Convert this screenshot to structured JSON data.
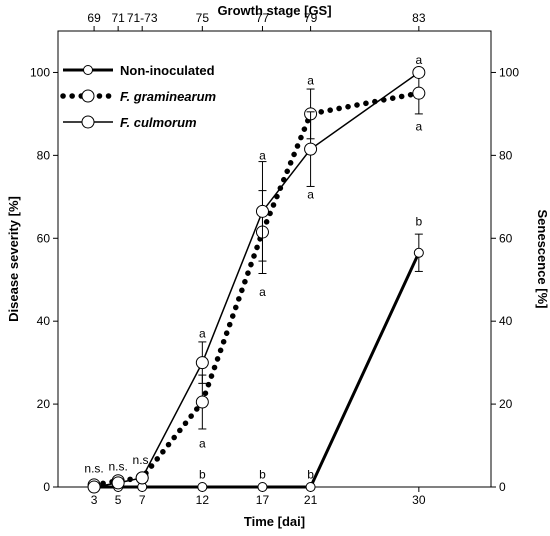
{
  "chart_data": {
    "type": "line",
    "xlabel": "Time [dai]",
    "ylabel": "Disease severity [%]",
    "y2label": "Senescence [%]",
    "top_axis_label": "Growth stage [GS]",
    "xlim": [
      0,
      36
    ],
    "ylim": [
      0,
      110
    ],
    "x_ticks": [
      3,
      5,
      7,
      12,
      17,
      21,
      30
    ],
    "x_tick_labels": [
      "3",
      "5",
      "7",
      "12",
      "17",
      "21",
      "30"
    ],
    "y_ticks": [
      0,
      20,
      40,
      60,
      80,
      100
    ],
    "y_tick_labels": [
      "0",
      "20",
      "40",
      "60",
      "80",
      "100"
    ],
    "top_ticks": [
      3,
      5,
      7,
      12,
      17,
      21,
      30
    ],
    "top_tick_labels": [
      "69",
      "71",
      "71-73",
      "75",
      "77",
      "79",
      "83"
    ],
    "legend_position": "top-left",
    "grid": false,
    "series": [
      {
        "name": "Non-inoculated",
        "style": "solid-thick",
        "x": [
          3,
          5,
          7,
          12,
          17,
          21,
          30
        ],
        "y": [
          0,
          0,
          0,
          0,
          0,
          0,
          56.5
        ],
        "err": [
          0,
          0,
          0,
          0,
          0,
          0,
          4.5
        ]
      },
      {
        "name": "F. graminearum",
        "style": "dotted",
        "x": [
          3,
          5,
          7,
          12,
          17,
          21,
          30
        ],
        "y": [
          0.5,
          1.5,
          2.2,
          20.5,
          61.5,
          90,
          95
        ],
        "err": [
          0,
          0,
          0,
          6.5,
          10,
          6,
          5
        ]
      },
      {
        "name": "F. culmorum",
        "style": "solid-thin",
        "x": [
          3,
          5,
          7,
          12,
          17,
          21,
          30
        ],
        "y": [
          0,
          1,
          2.2,
          30,
          66.5,
          81.5,
          100
        ],
        "err": [
          0,
          0,
          0,
          5,
          12,
          9,
          0
        ]
      }
    ],
    "annotations": [
      {
        "text": "n.s.",
        "x": 3,
        "y": 4.5
      },
      {
        "text": "n.s.",
        "x": 5,
        "y": 5
      },
      {
        "text": "n.s.",
        "x": 7,
        "y": 6.5
      },
      {
        "text": "a",
        "x": 12,
        "y": 37
      },
      {
        "text": "a",
        "x": 12,
        "y": 10.5
      },
      {
        "text": "b",
        "x": 12,
        "y": 3
      },
      {
        "text": "a",
        "x": 17,
        "y": 80
      },
      {
        "text": "a",
        "x": 17,
        "y": 47
      },
      {
        "text": "b",
        "x": 17,
        "y": 3
      },
      {
        "text": "a",
        "x": 21,
        "y": 98
      },
      {
        "text": "a",
        "x": 21,
        "y": 70.5
      },
      {
        "text": "b",
        "x": 21,
        "y": 3
      },
      {
        "text": "a",
        "x": 30,
        "y": 103
      },
      {
        "text": "a",
        "x": 30,
        "y": 87
      },
      {
        "text": "b",
        "x": 30,
        "y": 64
      }
    ]
  }
}
